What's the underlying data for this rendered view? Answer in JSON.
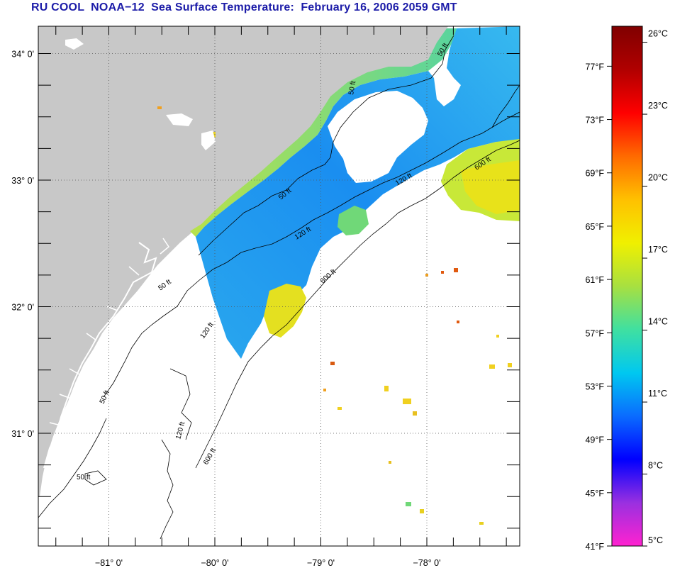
{
  "title": "RU COOL  NOAA−12  Sea Surface Temperature:  February 16, 2006 2059 GMT",
  "map": {
    "lat_ticks": [
      {
        "value": 34,
        "label": "34° 0'"
      },
      {
        "value": 33,
        "label": "33° 0'"
      },
      {
        "value": 32,
        "label": "32° 0'"
      },
      {
        "value": 31,
        "label": "31° 0'"
      }
    ],
    "lon_ticks": [
      {
        "value": -81,
        "label": "−81° 0'"
      },
      {
        "value": -80,
        "label": "−80° 0'"
      },
      {
        "value": -79,
        "label": "−79° 0'"
      },
      {
        "value": -78,
        "label": "−78° 0'"
      }
    ],
    "contour_labels": [
      "50 ft",
      "120 ft",
      "600 ft",
      "50 ft",
      "120 ft",
      "600 ft",
      "50 ft",
      "120 ft",
      "600 ft",
      "50 ft",
      "120 ft",
      "50 ft",
      "50 ft"
    ],
    "land_color": "#c8c8c8",
    "no_data_color": "#ffffff"
  },
  "colorbar": {
    "fahrenheit_labels": [
      "77°F",
      "73°F",
      "69°F",
      "65°F",
      "61°F",
      "57°F",
      "53°F",
      "49°F",
      "45°F",
      "41°F"
    ],
    "celsius_labels": [
      "26°C",
      "23°C",
      "20°C",
      "17°C",
      "14°C",
      "11°C",
      "8°C",
      "5°C"
    ],
    "fahrenheit_values": [
      77,
      73,
      69,
      65,
      61,
      57,
      53,
      49,
      45,
      41
    ],
    "celsius_values": [
      26,
      23,
      20,
      17,
      14,
      11,
      8,
      5
    ],
    "range_f": [
      41,
      80
    ],
    "stops": [
      "#ff22d0",
      "#9a30e0",
      "#0000ff",
      "#0a6cff",
      "#00c8f0",
      "#40e0a0",
      "#a8e040",
      "#f0f000",
      "#ffc000",
      "#ff6a00",
      "#ff0000",
      "#b00000",
      "#800000"
    ]
  }
}
